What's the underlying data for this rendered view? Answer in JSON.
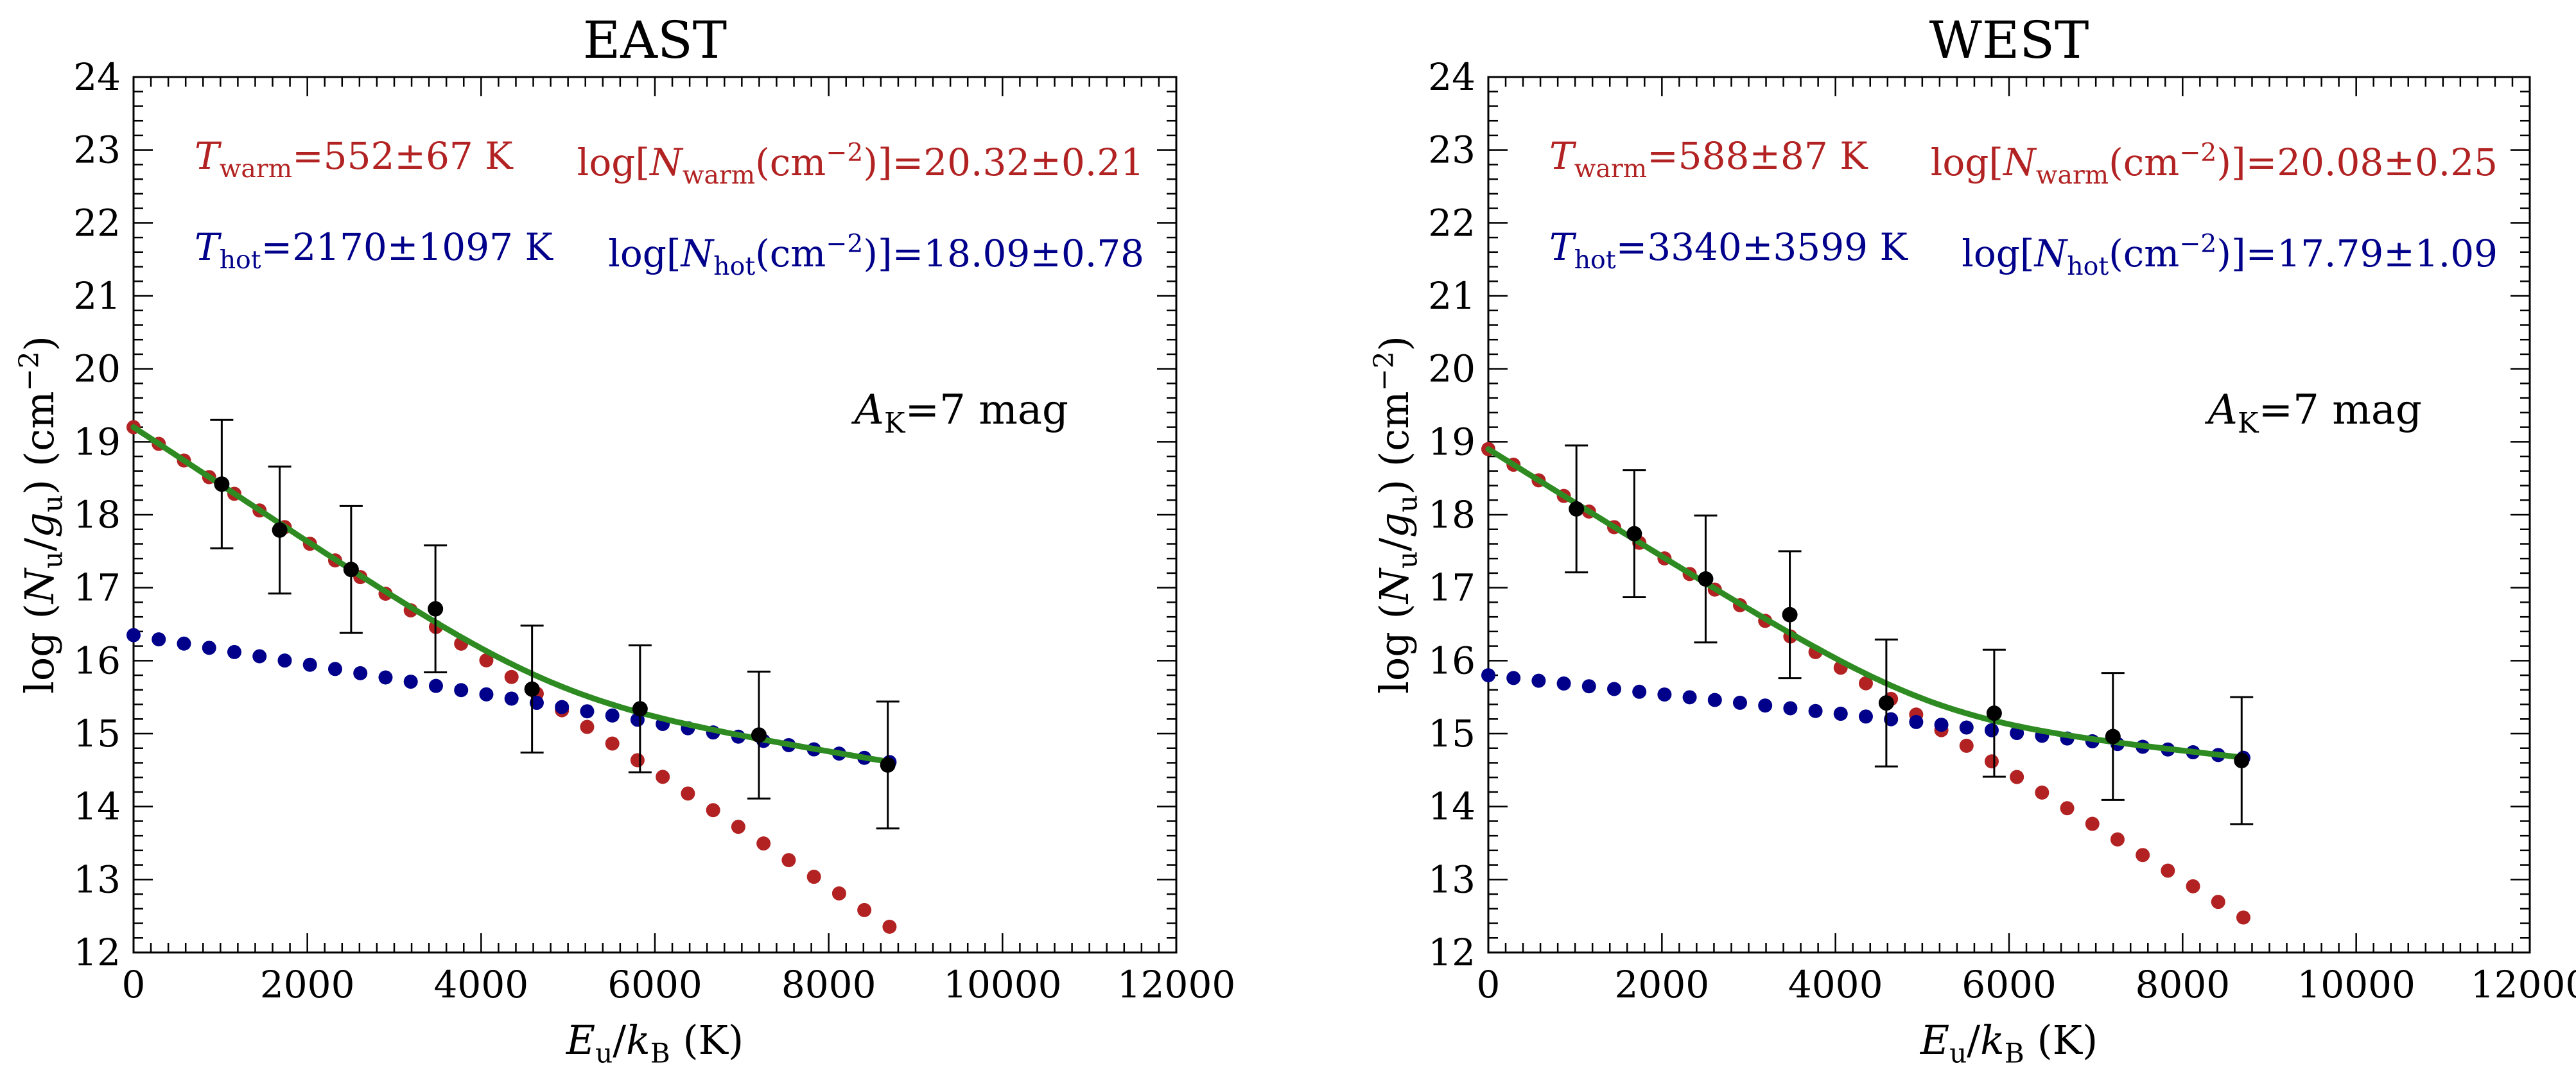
{
  "colors": {
    "warm": "#B22222",
    "hot": "#00008B",
    "fit": "#2E8B22",
    "obs": "#000000",
    "axis": "#000000"
  },
  "chart_data": [
    {
      "type": "scatter",
      "title": "EAST",
      "xlabel": "E_u/k_B (K)",
      "ylabel": "log (N_u/g_u) (cm^-2)",
      "xlim": [
        0,
        12000
      ],
      "ylim": [
        12,
        24
      ],
      "xticks": [
        "0",
        "2000",
        "4000",
        "6000",
        "8000",
        "10000",
        "12000"
      ],
      "yticks": [
        "12",
        "13",
        "14",
        "15",
        "16",
        "17",
        "18",
        "19",
        "20",
        "21",
        "22",
        "23",
        "24"
      ],
      "warm_label": "T_warm=552±67 K",
      "hot_label": "T_hot=2170±1097 K",
      "nwarm_label": "log[N_warm(cm^-2)]=20.32±0.21",
      "nhot_label": "log[N_hot(cm^-2)]=18.09±0.78",
      "ak_label": "A_K=7 mag",
      "warm_model": {
        "intercept": 19.2,
        "slope": -0.000787,
        "xmax": 8700,
        "step": 290
      },
      "hot_model": {
        "intercept": 16.35,
        "slope": -0.0002,
        "xmax": 8700,
        "step": 290
      },
      "observed": [
        {
          "x": 1015,
          "y": 18.42,
          "err": 0.88
        },
        {
          "x": 1682,
          "y": 17.79,
          "err": 0.87
        },
        {
          "x": 2504,
          "y": 17.25,
          "err": 0.87
        },
        {
          "x": 3474,
          "y": 16.71,
          "err": 0.87
        },
        {
          "x": 4586,
          "y": 15.61,
          "err": 0.87
        },
        {
          "x": 5829,
          "y": 15.34,
          "err": 0.87
        },
        {
          "x": 7197,
          "y": 14.98,
          "err": 0.87
        },
        {
          "x": 8680,
          "y": 14.57,
          "err": 0.87
        }
      ]
    },
    {
      "type": "scatter",
      "title": "WEST",
      "xlabel": "E_u/k_B (K)",
      "ylabel": "log (N_u/g_u) (cm^-2)",
      "xlim": [
        0,
        12000
      ],
      "ylim": [
        12,
        24
      ],
      "xticks": [
        "0",
        "2000",
        "4000",
        "6000",
        "8000",
        "10000",
        "12000"
      ],
      "yticks": [
        "12",
        "13",
        "14",
        "15",
        "16",
        "17",
        "18",
        "19",
        "20",
        "21",
        "22",
        "23",
        "24"
      ],
      "warm_label": "T_warm=588±87 K",
      "hot_label": "T_hot=3340±3599 K",
      "nwarm_label": "log[N_warm(cm^-2)]=20.08±0.25",
      "nhot_label": "log[N_hot(cm^-2)]=17.79±1.09",
      "ak_label": "A_K=7 mag",
      "warm_model": {
        "intercept": 18.9,
        "slope": -0.000738,
        "xmax": 8700,
        "step": 290
      },
      "hot_model": {
        "intercept": 15.8,
        "slope": -0.00013,
        "xmax": 8700,
        "step": 290
      },
      "observed": [
        {
          "x": 1015,
          "y": 18.08,
          "err": 0.87
        },
        {
          "x": 1682,
          "y": 17.74,
          "err": 0.87
        },
        {
          "x": 2504,
          "y": 17.12,
          "err": 0.87
        },
        {
          "x": 3474,
          "y": 16.63,
          "err": 0.87
        },
        {
          "x": 4586,
          "y": 15.42,
          "err": 0.87
        },
        {
          "x": 5829,
          "y": 15.28,
          "err": 0.87
        },
        {
          "x": 7197,
          "y": 14.96,
          "err": 0.87
        },
        {
          "x": 8680,
          "y": 14.63,
          "err": 0.87
        }
      ]
    }
  ]
}
